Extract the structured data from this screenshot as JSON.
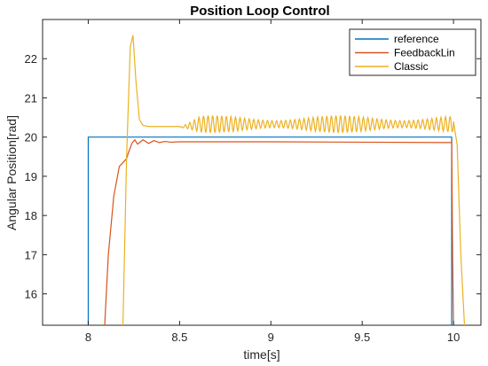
{
  "chart_data": {
    "type": "line",
    "title": "Position Loop Control",
    "xlabel": "time[s]",
    "ylabel": "Angular Position[rad]",
    "xlim": [
      7.75,
      10.15
    ],
    "ylim": [
      15.2,
      23.0
    ],
    "xticks": [
      8,
      8.5,
      9,
      9.5,
      10
    ],
    "xtick_labels": [
      "8",
      "8.5",
      "9",
      "9.5",
      "10"
    ],
    "yticks": [
      16,
      17,
      18,
      19,
      20,
      21,
      22
    ],
    "ytick_labels": [
      "16",
      "17",
      "18",
      "19",
      "20",
      "21",
      "22"
    ],
    "grid": false,
    "legend_position": "top-right",
    "series": [
      {
        "name": "reference",
        "color": "#0072BD",
        "x": [
          8.0,
          8.0,
          9.99,
          9.99
        ],
        "y": [
          15.2,
          20.0,
          20.0,
          15.2
        ]
      },
      {
        "name": "FeedbackLin",
        "color": "#D95319",
        "x": [
          8.09,
          8.11,
          8.14,
          8.17,
          8.19,
          8.21,
          8.22,
          8.24,
          8.255,
          8.27,
          8.3,
          8.33,
          8.36,
          8.39,
          8.42,
          8.45,
          8.5,
          9.0,
          9.5,
          9.99,
          9.995,
          10.0
        ],
        "y": [
          15.2,
          17.0,
          18.5,
          19.25,
          19.35,
          19.45,
          19.6,
          19.85,
          19.93,
          19.82,
          19.93,
          19.84,
          19.91,
          19.86,
          19.89,
          19.87,
          19.88,
          19.88,
          19.87,
          19.86,
          17.0,
          15.2
        ]
      },
      {
        "name": "Classic",
        "color": "#EDB120",
        "baseline": 20.25,
        "oscillation": {
          "start": 8.5,
          "end": 10.0,
          "period": 0.025,
          "amplitude": 0.22
        },
        "x": [
          8.19,
          8.21,
          8.23,
          8.245,
          8.26,
          8.28,
          8.3,
          8.33,
          8.5
        ],
        "y": [
          15.2,
          19.5,
          22.3,
          22.6,
          21.5,
          20.45,
          20.3,
          20.27,
          20.27
        ],
        "tail_x": [
          10.0,
          10.02,
          10.04,
          10.06
        ],
        "tail_y": [
          20.4,
          19.8,
          17.0,
          15.2
        ]
      }
    ]
  }
}
